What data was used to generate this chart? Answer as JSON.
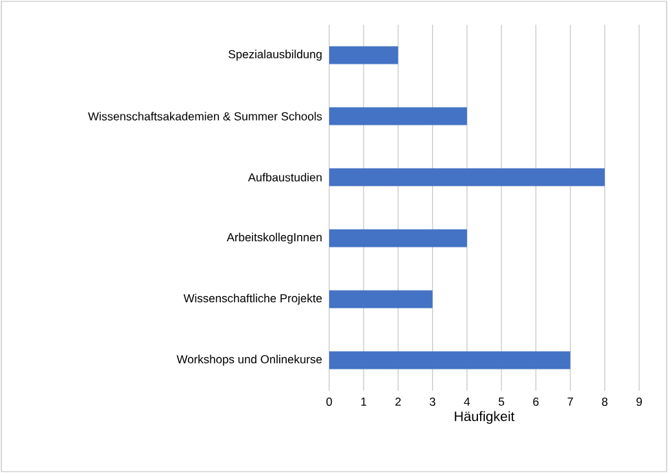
{
  "chart_data": {
    "type": "bar",
    "orientation": "horizontal",
    "categories": [
      "Spezialausbildung",
      "Wissenschaftsakademien & Summer Schools",
      "Aufbaustudien",
      "ArbeitskollegInnen",
      "Wissenschaftliche Projekte",
      "Workshops und Onlinekurse"
    ],
    "values": [
      2,
      4,
      8,
      4,
      3,
      7
    ],
    "color": "#4472c4",
    "xlabel": "Häufigkeit",
    "xlim": [
      0,
      9
    ],
    "xticks": [
      0,
      1,
      2,
      3,
      4,
      5,
      6,
      7,
      8,
      9
    ],
    "grid": "x"
  }
}
